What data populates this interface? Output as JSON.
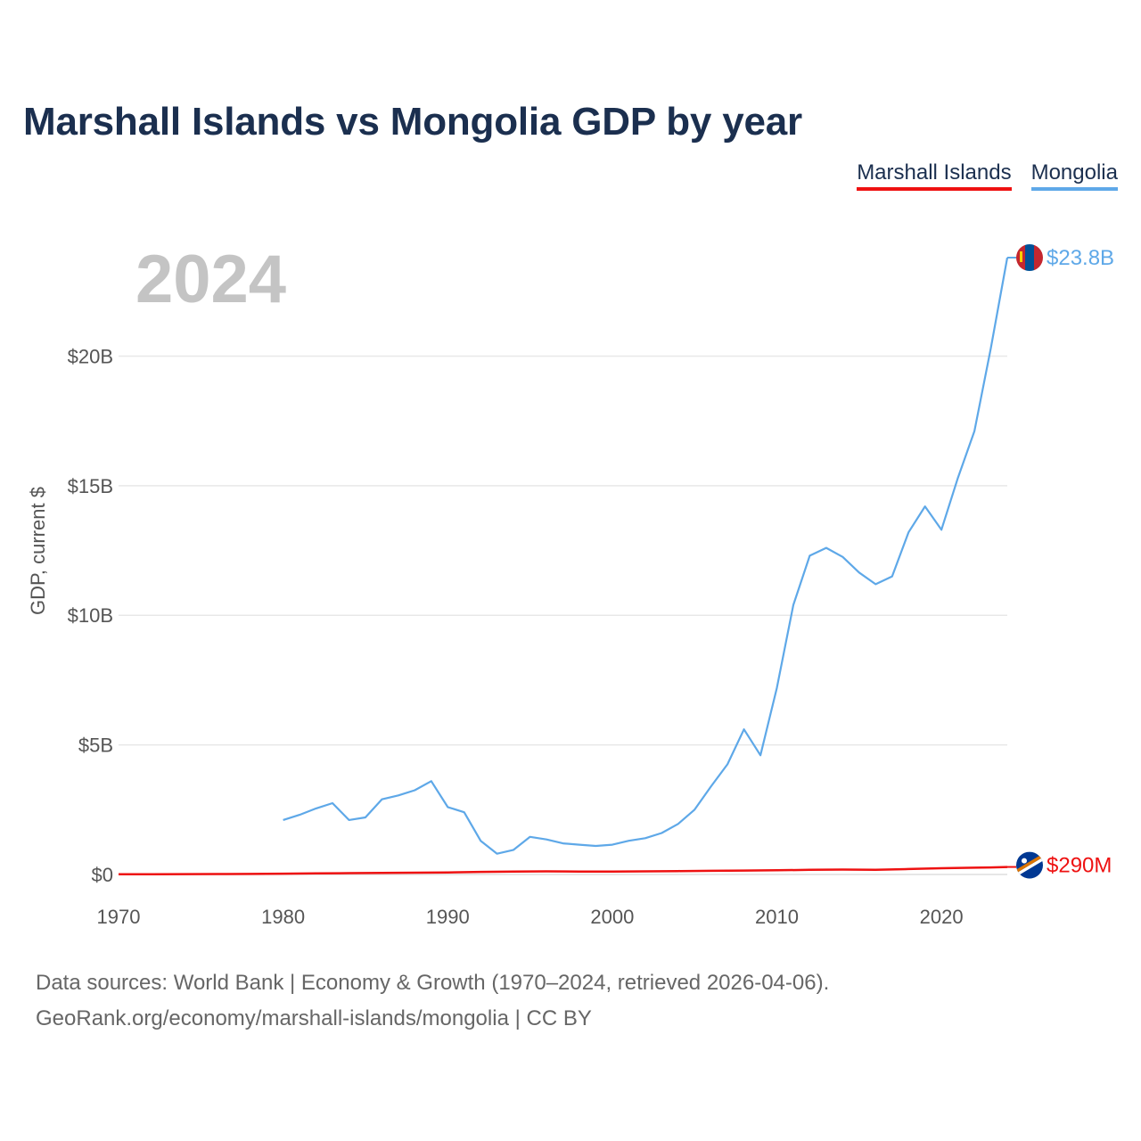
{
  "header": {
    "title": "Marshall Islands vs Mongolia GDP by year"
  },
  "legend": [
    {
      "label": "Marshall Islands",
      "color": "#ee1111"
    },
    {
      "label": "Mongolia",
      "color": "#5ea8e8"
    }
  ],
  "footer": {
    "line1": "Data sources: World Bank | Economy & Growth (1970–2024, retrieved 2026-04-06).",
    "line2": "GeoRank.org/economy/marshall-islands/mongolia | CC BY"
  },
  "chart_data": {
    "type": "line",
    "title": "Marshall Islands vs Mongolia GDP by year",
    "current_year_label": "2024",
    "xlabel": "",
    "ylabel": "GDP, current $",
    "xlim": [
      1970,
      2024
    ],
    "ylim": [
      0,
      24
    ],
    "x_ticks": [
      1970,
      1980,
      1990,
      2000,
      2010,
      2020
    ],
    "x_tick_labels": [
      "1970",
      "1980",
      "1990",
      "2000",
      "2010",
      "2020"
    ],
    "y_ticks": [
      0,
      5,
      10,
      15,
      20
    ],
    "y_tick_labels": [
      "$0",
      "$5B",
      "$10B",
      "$15B",
      "$20B"
    ],
    "grid": true,
    "legend_position": "top-right",
    "units": "billions of current US$",
    "series": [
      {
        "name": "Marshall Islands",
        "color": "#ee1111",
        "end_label": "$290M",
        "x": [
          1970,
          1972,
          1974,
          1976,
          1978,
          1980,
          1982,
          1984,
          1986,
          1988,
          1990,
          1992,
          1994,
          1996,
          1998,
          2000,
          2002,
          2004,
          2006,
          2008,
          2010,
          2012,
          2014,
          2016,
          2018,
          2020,
          2022,
          2023,
          2024
        ],
        "values": [
          0.01,
          0.012,
          0.015,
          0.018,
          0.022,
          0.03,
          0.04,
          0.05,
          0.06,
          0.07,
          0.08,
          0.1,
          0.11,
          0.12,
          0.11,
          0.11,
          0.12,
          0.13,
          0.14,
          0.15,
          0.16,
          0.18,
          0.19,
          0.18,
          0.21,
          0.24,
          0.26,
          0.27,
          0.29
        ]
      },
      {
        "name": "Mongolia",
        "color": "#5ea8e8",
        "end_label": "$23.8B",
        "x": [
          1980,
          1981,
          1982,
          1983,
          1984,
          1985,
          1986,
          1987,
          1988,
          1989,
          1990,
          1991,
          1992,
          1993,
          1994,
          1995,
          1996,
          1997,
          1998,
          1999,
          2000,
          2001,
          2002,
          2003,
          2004,
          2005,
          2006,
          2007,
          2008,
          2009,
          2010,
          2011,
          2012,
          2013,
          2014,
          2015,
          2016,
          2017,
          2018,
          2019,
          2020,
          2021,
          2022,
          2023,
          2024
        ],
        "values": [
          2.1,
          2.3,
          2.55,
          2.75,
          2.1,
          2.2,
          2.9,
          3.05,
          3.25,
          3.6,
          2.6,
          2.4,
          1.3,
          0.8,
          0.95,
          1.45,
          1.35,
          1.2,
          1.15,
          1.1,
          1.15,
          1.3,
          1.4,
          1.6,
          1.95,
          2.5,
          3.4,
          4.25,
          5.6,
          4.6,
          7.2,
          10.4,
          12.3,
          12.6,
          12.25,
          11.65,
          11.2,
          11.5,
          13.2,
          14.2,
          13.3,
          15.3,
          17.1,
          20.3,
          23.8
        ]
      }
    ]
  }
}
